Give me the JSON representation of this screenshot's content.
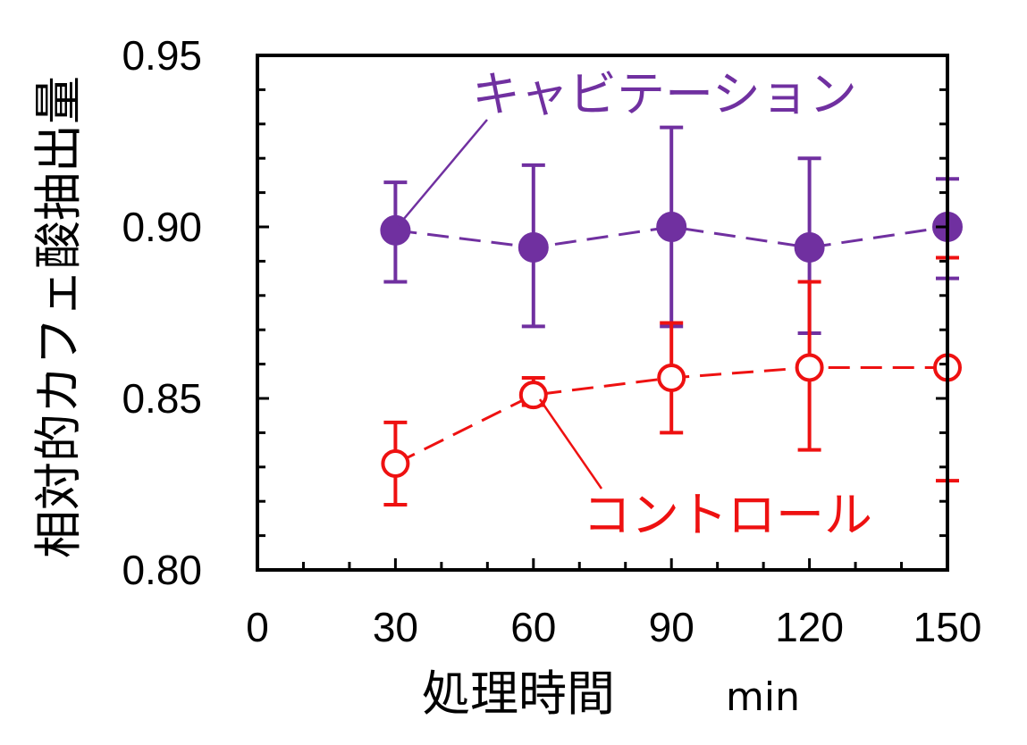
{
  "chart_data": {
    "type": "scatter",
    "title": "",
    "xlabel": "処理時間",
    "xunit": "min",
    "ylabel": "相対的カフェ酸抽出量",
    "xlim": [
      0,
      150
    ],
    "ylim": [
      0.8,
      0.95
    ],
    "x_ticks": [
      "0",
      "30",
      "60",
      "90",
      "120",
      "150"
    ],
    "y_ticks": [
      "0.80",
      "0.85",
      "0.90",
      "0.95"
    ],
    "grid": false,
    "legend": "none",
    "series": [
      {
        "name": "キャビテーション",
        "color": "#7030A0",
        "marker": "filled-circle",
        "line": "dashed",
        "points": [
          {
            "x": 30,
            "y": 0.899,
            "err_low": 0.884,
            "err_high": 0.913
          },
          {
            "x": 60,
            "y": 0.894,
            "err_low": 0.871,
            "err_high": 0.918
          },
          {
            "x": 90,
            "y": 0.9,
            "err_low": 0.871,
            "err_high": 0.929
          },
          {
            "x": 120,
            "y": 0.894,
            "err_low": 0.869,
            "err_high": 0.92
          },
          {
            "x": 150,
            "y": 0.9,
            "err_low": 0.885,
            "err_high": 0.914
          }
        ]
      },
      {
        "name": "コントロール",
        "color": "#EE1111",
        "marker": "open-circle",
        "line": "dashed",
        "points": [
          {
            "x": 30,
            "y": 0.831,
            "err_low": 0.819,
            "err_high": 0.843
          },
          {
            "x": 60,
            "y": 0.851,
            "err_low": 0.848,
            "err_high": 0.856
          },
          {
            "x": 90,
            "y": 0.856,
            "err_low": 0.84,
            "err_high": 0.872
          },
          {
            "x": 120,
            "y": 0.859,
            "err_low": 0.835,
            "err_high": 0.884
          },
          {
            "x": 150,
            "y": 0.859,
            "err_low": 0.826,
            "err_high": 0.891
          }
        ]
      }
    ]
  }
}
